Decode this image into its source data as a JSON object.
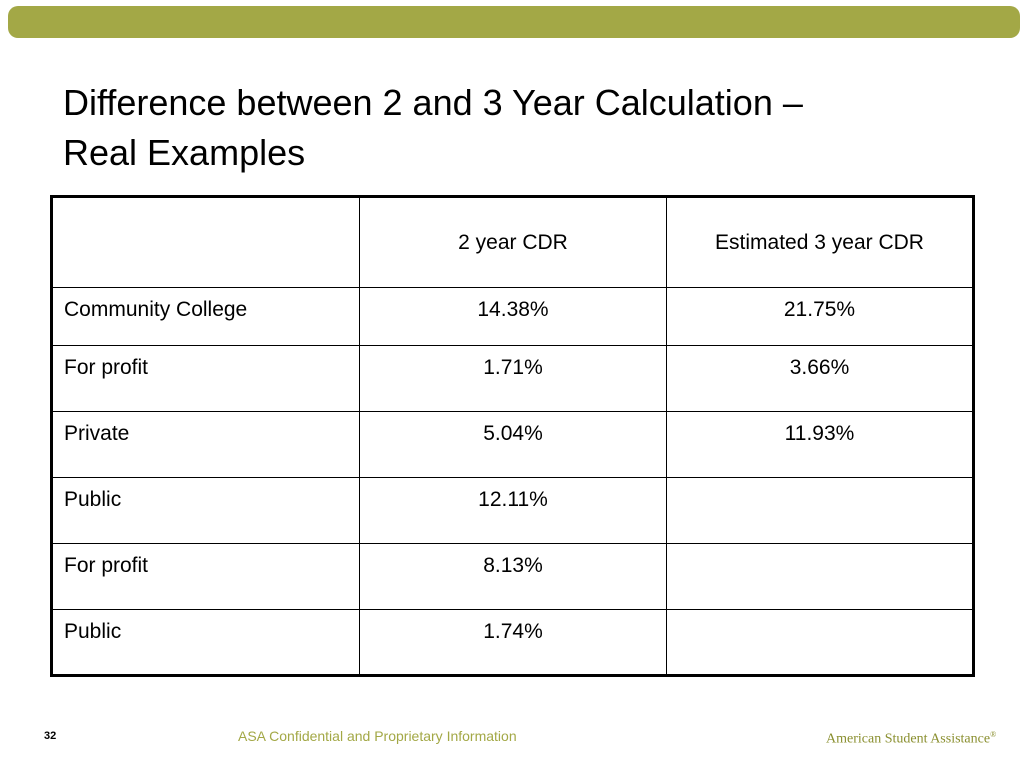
{
  "slide": {
    "title_line1": "Difference between 2 and 3 Year Calculation –",
    "title_line2": "Real Examples",
    "page_number": "32",
    "confidential": "ASA Confidential and Proprietary Information",
    "brand": "American Student Assistance",
    "brand_mark": "®",
    "accent_color": "#a3a846"
  },
  "table": {
    "headers": [
      "",
      "2 year CDR",
      "Estimated 3 year CDR"
    ],
    "rows": [
      [
        "Community College",
        "14.38%",
        "21.75%"
      ],
      [
        "For profit",
        "1.71%",
        "3.66%"
      ],
      [
        "Private",
        "5.04%",
        "11.93%"
      ],
      [
        "Public",
        "12.11%",
        ""
      ],
      [
        "For profit",
        "8.13%",
        ""
      ],
      [
        "Public",
        "1.74%",
        ""
      ]
    ]
  }
}
